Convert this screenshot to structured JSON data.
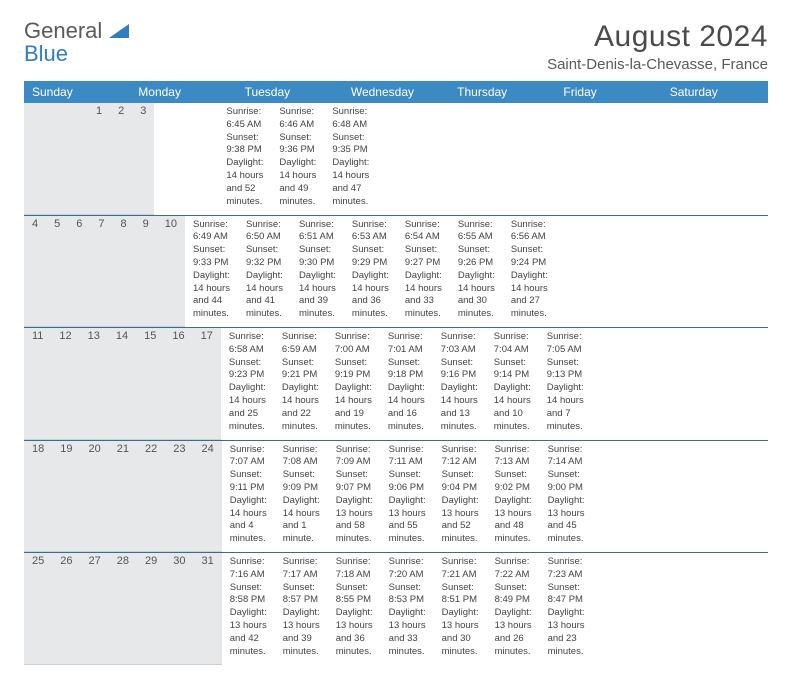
{
  "brand": {
    "word1": "General",
    "word2": "Blue",
    "text_color": "#5a5a5a",
    "accent_color": "#2f7fbf"
  },
  "title": "August 2024",
  "location": "Saint-Denis-la-Chevasse, France",
  "colors": {
    "header_bg": "#3b8ac4",
    "header_text": "#ffffff",
    "daynum_bg": "#e7e8e9",
    "week_divider": "#3b6a9a",
    "body_text": "#444444",
    "background": "#ffffff"
  },
  "fonts": {
    "title_size": 30,
    "location_size": 15,
    "dayheader_size": 12,
    "daynum_size": 11,
    "daydata_size": 9.5
  },
  "day_names": [
    "Sunday",
    "Monday",
    "Tuesday",
    "Wednesday",
    "Thursday",
    "Friday",
    "Saturday"
  ],
  "weeks": [
    {
      "nums": [
        "",
        "",
        "",
        "",
        "1",
        "2",
        "3"
      ],
      "data": [
        null,
        null,
        null,
        null,
        {
          "sunrise": "Sunrise: 6:45 AM",
          "sunset": "Sunset: 9:38 PM",
          "dl1": "Daylight: 14 hours",
          "dl2": "and 52 minutes."
        },
        {
          "sunrise": "Sunrise: 6:46 AM",
          "sunset": "Sunset: 9:36 PM",
          "dl1": "Daylight: 14 hours",
          "dl2": "and 49 minutes."
        },
        {
          "sunrise": "Sunrise: 6:48 AM",
          "sunset": "Sunset: 9:35 PM",
          "dl1": "Daylight: 14 hours",
          "dl2": "and 47 minutes."
        }
      ]
    },
    {
      "nums": [
        "4",
        "5",
        "6",
        "7",
        "8",
        "9",
        "10"
      ],
      "data": [
        {
          "sunrise": "Sunrise: 6:49 AM",
          "sunset": "Sunset: 9:33 PM",
          "dl1": "Daylight: 14 hours",
          "dl2": "and 44 minutes."
        },
        {
          "sunrise": "Sunrise: 6:50 AM",
          "sunset": "Sunset: 9:32 PM",
          "dl1": "Daylight: 14 hours",
          "dl2": "and 41 minutes."
        },
        {
          "sunrise": "Sunrise: 6:51 AM",
          "sunset": "Sunset: 9:30 PM",
          "dl1": "Daylight: 14 hours",
          "dl2": "and 39 minutes."
        },
        {
          "sunrise": "Sunrise: 6:53 AM",
          "sunset": "Sunset: 9:29 PM",
          "dl1": "Daylight: 14 hours",
          "dl2": "and 36 minutes."
        },
        {
          "sunrise": "Sunrise: 6:54 AM",
          "sunset": "Sunset: 9:27 PM",
          "dl1": "Daylight: 14 hours",
          "dl2": "and 33 minutes."
        },
        {
          "sunrise": "Sunrise: 6:55 AM",
          "sunset": "Sunset: 9:26 PM",
          "dl1": "Daylight: 14 hours",
          "dl2": "and 30 minutes."
        },
        {
          "sunrise": "Sunrise: 6:56 AM",
          "sunset": "Sunset: 9:24 PM",
          "dl1": "Daylight: 14 hours",
          "dl2": "and 27 minutes."
        }
      ]
    },
    {
      "nums": [
        "11",
        "12",
        "13",
        "14",
        "15",
        "16",
        "17"
      ],
      "data": [
        {
          "sunrise": "Sunrise: 6:58 AM",
          "sunset": "Sunset: 9:23 PM",
          "dl1": "Daylight: 14 hours",
          "dl2": "and 25 minutes."
        },
        {
          "sunrise": "Sunrise: 6:59 AM",
          "sunset": "Sunset: 9:21 PM",
          "dl1": "Daylight: 14 hours",
          "dl2": "and 22 minutes."
        },
        {
          "sunrise": "Sunrise: 7:00 AM",
          "sunset": "Sunset: 9:19 PM",
          "dl1": "Daylight: 14 hours",
          "dl2": "and 19 minutes."
        },
        {
          "sunrise": "Sunrise: 7:01 AM",
          "sunset": "Sunset: 9:18 PM",
          "dl1": "Daylight: 14 hours",
          "dl2": "and 16 minutes."
        },
        {
          "sunrise": "Sunrise: 7:03 AM",
          "sunset": "Sunset: 9:16 PM",
          "dl1": "Daylight: 14 hours",
          "dl2": "and 13 minutes."
        },
        {
          "sunrise": "Sunrise: 7:04 AM",
          "sunset": "Sunset: 9:14 PM",
          "dl1": "Daylight: 14 hours",
          "dl2": "and 10 minutes."
        },
        {
          "sunrise": "Sunrise: 7:05 AM",
          "sunset": "Sunset: 9:13 PM",
          "dl1": "Daylight: 14 hours",
          "dl2": "and 7 minutes."
        }
      ]
    },
    {
      "nums": [
        "18",
        "19",
        "20",
        "21",
        "22",
        "23",
        "24"
      ],
      "data": [
        {
          "sunrise": "Sunrise: 7:07 AM",
          "sunset": "Sunset: 9:11 PM",
          "dl1": "Daylight: 14 hours",
          "dl2": "and 4 minutes."
        },
        {
          "sunrise": "Sunrise: 7:08 AM",
          "sunset": "Sunset: 9:09 PM",
          "dl1": "Daylight: 14 hours",
          "dl2": "and 1 minute."
        },
        {
          "sunrise": "Sunrise: 7:09 AM",
          "sunset": "Sunset: 9:07 PM",
          "dl1": "Daylight: 13 hours",
          "dl2": "and 58 minutes."
        },
        {
          "sunrise": "Sunrise: 7:11 AM",
          "sunset": "Sunset: 9:06 PM",
          "dl1": "Daylight: 13 hours",
          "dl2": "and 55 minutes."
        },
        {
          "sunrise": "Sunrise: 7:12 AM",
          "sunset": "Sunset: 9:04 PM",
          "dl1": "Daylight: 13 hours",
          "dl2": "and 52 minutes."
        },
        {
          "sunrise": "Sunrise: 7:13 AM",
          "sunset": "Sunset: 9:02 PM",
          "dl1": "Daylight: 13 hours",
          "dl2": "and 48 minutes."
        },
        {
          "sunrise": "Sunrise: 7:14 AM",
          "sunset": "Sunset: 9:00 PM",
          "dl1": "Daylight: 13 hours",
          "dl2": "and 45 minutes."
        }
      ]
    },
    {
      "nums": [
        "25",
        "26",
        "27",
        "28",
        "29",
        "30",
        "31"
      ],
      "data": [
        {
          "sunrise": "Sunrise: 7:16 AM",
          "sunset": "Sunset: 8:58 PM",
          "dl1": "Daylight: 13 hours",
          "dl2": "and 42 minutes."
        },
        {
          "sunrise": "Sunrise: 7:17 AM",
          "sunset": "Sunset: 8:57 PM",
          "dl1": "Daylight: 13 hours",
          "dl2": "and 39 minutes."
        },
        {
          "sunrise": "Sunrise: 7:18 AM",
          "sunset": "Sunset: 8:55 PM",
          "dl1": "Daylight: 13 hours",
          "dl2": "and 36 minutes."
        },
        {
          "sunrise": "Sunrise: 7:20 AM",
          "sunset": "Sunset: 8:53 PM",
          "dl1": "Daylight: 13 hours",
          "dl2": "and 33 minutes."
        },
        {
          "sunrise": "Sunrise: 7:21 AM",
          "sunset": "Sunset: 8:51 PM",
          "dl1": "Daylight: 13 hours",
          "dl2": "and 30 minutes."
        },
        {
          "sunrise": "Sunrise: 7:22 AM",
          "sunset": "Sunset: 8:49 PM",
          "dl1": "Daylight: 13 hours",
          "dl2": "and 26 minutes."
        },
        {
          "sunrise": "Sunrise: 7:23 AM",
          "sunset": "Sunset: 8:47 PM",
          "dl1": "Daylight: 13 hours",
          "dl2": "and 23 minutes."
        }
      ]
    }
  ]
}
